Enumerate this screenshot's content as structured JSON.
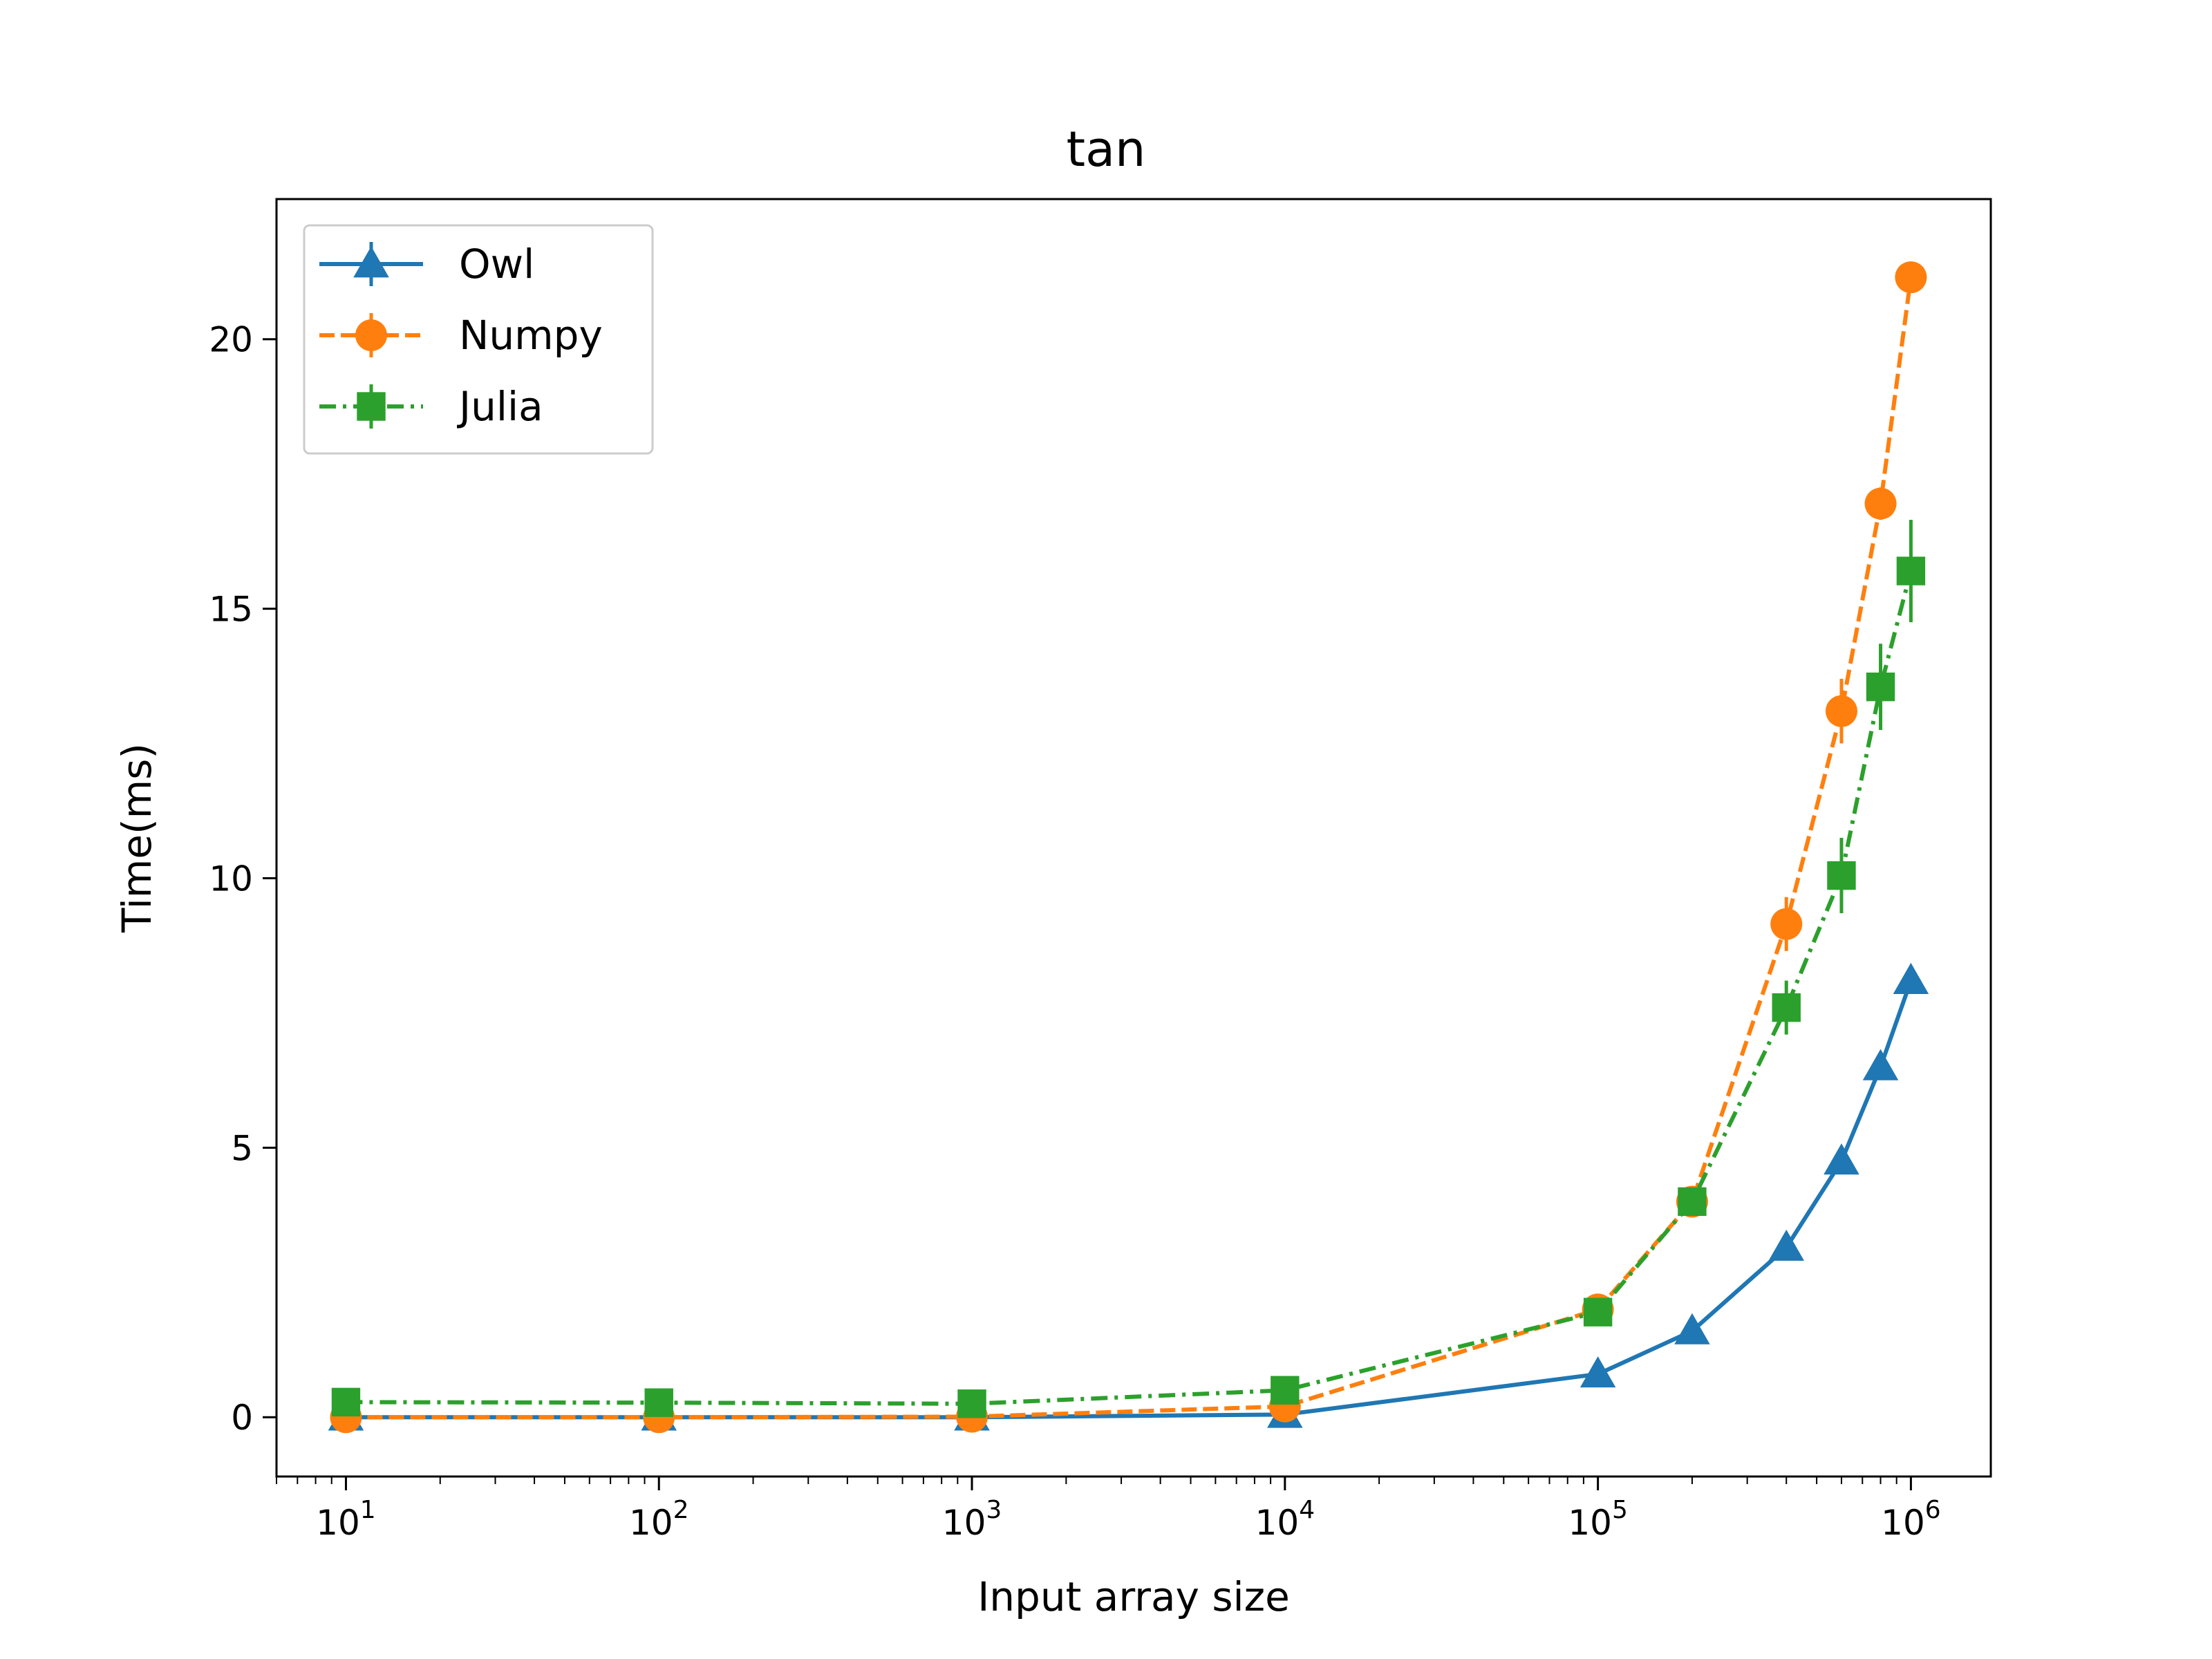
{
  "chart_data": {
    "type": "line",
    "title": "tan",
    "xlabel": "Input array size",
    "ylabel": "Time(ms)",
    "xscale": "log",
    "xlim": [
      6,
      1800000
    ],
    "ylim": [
      -1.1,
      22.6
    ],
    "x_ticks": [
      {
        "value": 10,
        "base": "10",
        "exp": "1"
      },
      {
        "value": 100,
        "base": "10",
        "exp": "2"
      },
      {
        "value": 1000,
        "base": "10",
        "exp": "3"
      },
      {
        "value": 10000,
        "base": "10",
        "exp": "4"
      },
      {
        "value": 100000,
        "base": "10",
        "exp": "5"
      },
      {
        "value": 1000000,
        "base": "10",
        "exp": "6"
      }
    ],
    "y_ticks": [
      0,
      5,
      10,
      15,
      20
    ],
    "grid": false,
    "legend_position": "top-left",
    "x": [
      10,
      100,
      1000,
      10000,
      100000,
      200000,
      400000,
      600000,
      800000,
      1000000
    ],
    "series": [
      {
        "name": "Owl",
        "color": "#1f77b4",
        "linestyle": "solid",
        "marker": "triangle",
        "values": [
          0.0,
          0.0,
          0.0,
          0.05,
          0.8,
          1.6,
          3.15,
          4.75,
          6.5,
          8.1
        ],
        "errors": [
          0,
          0,
          0,
          0,
          0.05,
          0.08,
          0.1,
          0.15,
          0.15,
          0.2
        ]
      },
      {
        "name": "Numpy",
        "color": "#ff7f0e",
        "linestyle": "dashed",
        "marker": "circle",
        "values": [
          0.0,
          0.0,
          0.01,
          0.2,
          2.0,
          4.0,
          9.15,
          13.1,
          16.95,
          21.15
        ],
        "errors": [
          0,
          0,
          0,
          0.02,
          0.1,
          0.15,
          0.5,
          0.6,
          0.3,
          0.2
        ]
      },
      {
        "name": "Julia",
        "color": "#2ca02c",
        "linestyle": "dashdot",
        "marker": "square",
        "values": [
          0.28,
          0.27,
          0.25,
          0.5,
          1.95,
          4.0,
          7.6,
          10.05,
          13.55,
          15.7
        ],
        "errors": [
          0.02,
          0.02,
          0.02,
          0.05,
          0.1,
          0.15,
          0.5,
          0.7,
          0.8,
          0.95
        ]
      }
    ]
  }
}
